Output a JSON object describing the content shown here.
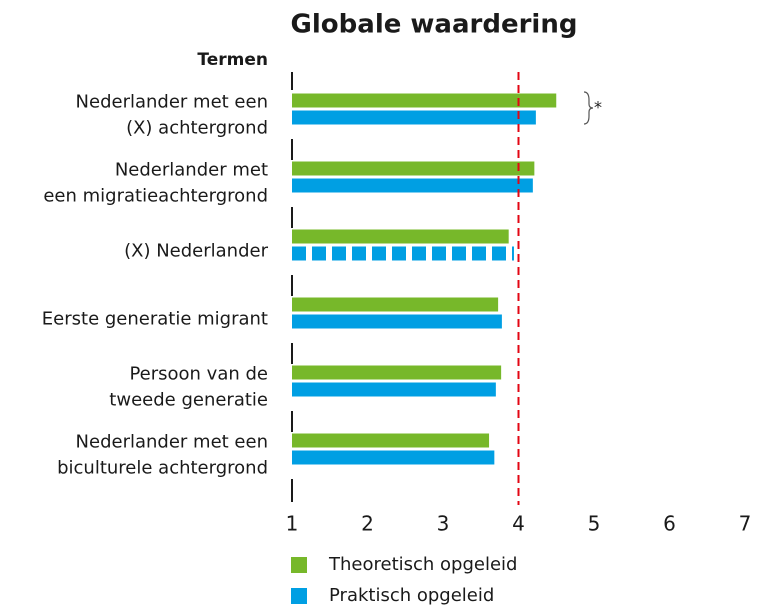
{
  "chart_data": {
    "type": "bar",
    "orientation": "horizontal",
    "title": "Globale waardering",
    "y_label": "Termen",
    "categories": [
      [
        "Nederlander met een",
        "(X) achtergrond"
      ],
      [
        "Nederlander met",
        "een migratieachtergrond"
      ],
      [
        "(X) Nederlander"
      ],
      [
        "Eerste generatie migrant"
      ],
      [
        "Persoon van de",
        "tweede generatie"
      ],
      [
        "Nederlander met een",
        "biculturele achtergrond"
      ]
    ],
    "series": [
      {
        "name": "Theoretisch opgeleid",
        "color": "#77b82a",
        "values": [
          4.5,
          4.21,
          3.87,
          3.73,
          3.77,
          3.61
        ]
      },
      {
        "name": "Praktisch opgeleid",
        "color": "#009fe3",
        "values": [
          4.23,
          4.19,
          3.94,
          3.78,
          3.7,
          3.68
        ],
        "dashed": [
          2
        ]
      }
    ],
    "xlim": [
      1,
      7
    ],
    "xticks": [
      1,
      2,
      3,
      4,
      5,
      6,
      7
    ],
    "reference_line": {
      "value": 4,
      "color": "#e30613"
    },
    "annotation": "*"
  }
}
